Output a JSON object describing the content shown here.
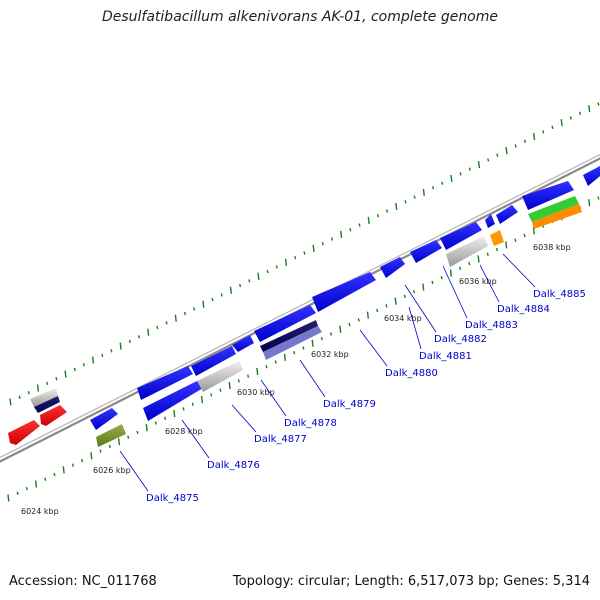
{
  "title": "Desulfatibacillum alkenivorans AK-01, complete genome",
  "footer": {
    "accession": "Accession: NC_011768",
    "summary": "Topology: circular; Length: 6,517,073 bp; Genes: 5,314"
  },
  "ticks": [
    "6024 kbp",
    "6026 kbp",
    "6028 kbp",
    "6030 kbp",
    "6032 kbp",
    "6034 kbp",
    "6036 kbp",
    "6038 kbp"
  ],
  "genes": [
    "Dalk_4875",
    "Dalk_4876",
    "Dalk_4877",
    "Dalk_4878",
    "Dalk_4879",
    "Dalk_4880",
    "Dalk_4881",
    "Dalk_4882",
    "Dalk_4883",
    "Dalk_4884",
    "Dalk_4885"
  ],
  "colors": {
    "cds": "#0000ee",
    "rrna": "#ee0000",
    "trna_green": "#6b8e23",
    "pseudo_grey": "#b0b0b0",
    "orange": "#ff8c00",
    "lime": "#33cc33",
    "navy": "#000066",
    "lavender": "#7777cc",
    "gc_ticks": "#1a7f1a"
  }
}
